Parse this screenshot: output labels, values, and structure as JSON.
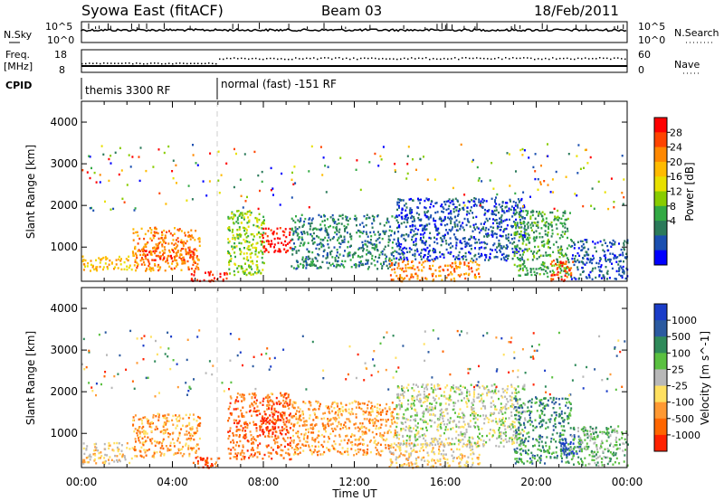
{
  "header": {
    "title": "Syowa East (fitACF)",
    "beam": "Beam 03",
    "date": "18/Feb/2011"
  },
  "top_panels": {
    "sky_label": "N.Sky",
    "sky_ticks": [
      "10^5",
      "10^0"
    ],
    "search_label": "N.Search",
    "search_ticks": [
      "10^5",
      "10^0"
    ],
    "freq_label_line1": "Freq.",
    "freq_label_line2": "[MHz]",
    "freq_ticks": [
      "18",
      "8"
    ],
    "nave_label": "Nave",
    "nave_ticks": [
      "60",
      "0"
    ],
    "cpid_label": "CPID",
    "cpid_segments": [
      {
        "label": "themis 3300 RF",
        "start_hour": 0
      },
      {
        "label": "normal (fast) -151 RF",
        "start_hour": 6
      }
    ]
  },
  "x_axis": {
    "label": "Time UT",
    "ticks": [
      "00:00",
      "04:00",
      "08:00",
      "12:00",
      "16:00",
      "20:00",
      "00:00"
    ]
  },
  "chart_data": [
    {
      "type": "heatmap",
      "title": "",
      "xlabel": "Time UT",
      "ylabel": "Slant Range [km]",
      "xlim": [
        0,
        24
      ],
      "ylim": [
        180,
        4500
      ],
      "y_ticks": [
        1000,
        2000,
        3000,
        4000
      ],
      "colorbar": {
        "label": "Power [dB]",
        "ticks": [
          "28",
          "24",
          "20",
          "16",
          "12",
          "8",
          "4"
        ],
        "colors": [
          "#ff0000",
          "#ff4400",
          "#ff8800",
          "#ffbb00",
          "#e8e000",
          "#88cc00",
          "#33aa44",
          "#2b7a5a",
          "#1a4fb0",
          "#0000ff"
        ]
      },
      "regions": [
        {
          "t0": 0.0,
          "t1": 2.2,
          "r0": 450,
          "r1": 800,
          "level": 3
        },
        {
          "t0": 2.2,
          "t1": 5.2,
          "r0": 450,
          "r1": 1500,
          "level": 2
        },
        {
          "t0": 2.4,
          "t1": 5.0,
          "r0": 700,
          "r1": 1000,
          "level": 1
        },
        {
          "t0": 4.8,
          "t1": 6.4,
          "r0": 200,
          "r1": 450,
          "level": 0
        },
        {
          "t0": 6.4,
          "t1": 8.0,
          "r0": 350,
          "r1": 1900,
          "level": 5
        },
        {
          "t0": 7.9,
          "t1": 9.2,
          "r0": 900,
          "r1": 1500,
          "level": 0
        },
        {
          "t0": 9.2,
          "t1": 13.8,
          "r0": 500,
          "r1": 1800,
          "level": 7
        },
        {
          "t0": 13.5,
          "t1": 17.5,
          "r0": 200,
          "r1": 700,
          "level": 2
        },
        {
          "t0": 13.8,
          "t1": 19.5,
          "r0": 700,
          "r1": 2200,
          "level": 8
        },
        {
          "t0": 19.0,
          "t1": 21.5,
          "r0": 300,
          "r1": 1900,
          "level": 6
        },
        {
          "t0": 20.6,
          "t1": 21.6,
          "r0": 200,
          "r1": 700,
          "level": 1
        },
        {
          "t0": 21.5,
          "t1": 24.0,
          "r0": 250,
          "r1": 1200,
          "level": 8
        }
      ]
    },
    {
      "type": "heatmap",
      "title": "",
      "xlabel": "Time UT",
      "ylabel": "Slant Range [km]",
      "xlim": [
        0,
        24
      ],
      "ylim": [
        180,
        4500
      ],
      "y_ticks": [
        1000,
        2000,
        3000,
        4000
      ],
      "colorbar": {
        "label": "Velocity [m s^-1]",
        "ticks": [
          "1000",
          "500",
          "100",
          "25",
          "-25",
          "-100",
          "-500",
          "-1000"
        ],
        "colors": [
          "#1a3cc8",
          "#2b5aa0",
          "#2f8a5a",
          "#5ac040",
          "#b8b8b8",
          "#ffe060",
          "#ff9933",
          "#ff6600",
          "#ff2200"
        ]
      },
      "regions": [
        {
          "t0": 0.0,
          "t1": 2.2,
          "r0": 300,
          "r1": 800,
          "level": 5
        },
        {
          "t0": 2.2,
          "t1": 5.2,
          "r0": 450,
          "r1": 1500,
          "level": 6
        },
        {
          "t0": 4.8,
          "t1": 6.4,
          "r0": 200,
          "r1": 450,
          "level": 7
        },
        {
          "t0": 6.4,
          "t1": 9.2,
          "r0": 400,
          "r1": 2000,
          "level": 7
        },
        {
          "t0": 7.8,
          "t1": 9.0,
          "r0": 1000,
          "r1": 1500,
          "level": 8
        },
        {
          "t0": 9.2,
          "t1": 13.8,
          "r0": 500,
          "r1": 1800,
          "level": 6
        },
        {
          "t0": 13.5,
          "t1": 17.5,
          "r0": 200,
          "r1": 800,
          "level": 5
        },
        {
          "t0": 13.8,
          "t1": 19.5,
          "r0": 700,
          "r1": 2200,
          "level": 4
        },
        {
          "t0": 19.0,
          "t1": 21.5,
          "r0": 300,
          "r1": 1900,
          "level": 2
        },
        {
          "t0": 21.0,
          "t1": 22.0,
          "r0": 500,
          "r1": 1000,
          "level": 0
        },
        {
          "t0": 21.5,
          "t1": 24.0,
          "r0": 250,
          "r1": 1200,
          "level": 3
        }
      ]
    }
  ]
}
